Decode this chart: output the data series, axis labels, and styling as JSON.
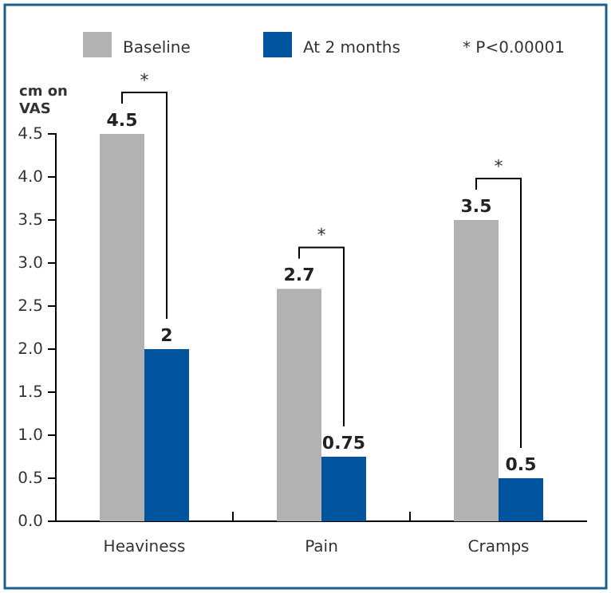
{
  "chart_data": {
    "type": "bar",
    "ylabel": "cm on VAS",
    "categories": [
      "Heaviness",
      "Pain",
      "Cramps"
    ],
    "series": [
      {
        "name": "Baseline",
        "color": "#b2b2b2",
        "values": [
          4.5,
          2.7,
          3.5
        ]
      },
      {
        "name": "At 2 months",
        "color": "#00559e",
        "values": [
          2,
          0.75,
          0.5
        ]
      }
    ],
    "ylim": [
      0,
      4.5
    ],
    "yticks": [
      {
        "value": 0,
        "label": "0.0"
      },
      {
        "value": 0.5,
        "label": "0.5"
      },
      {
        "value": 1,
        "label": "1.0"
      },
      {
        "value": 1.5,
        "label": "1.5"
      },
      {
        "value": 2,
        "label": "2.0"
      },
      {
        "value": 2.5,
        "label": "2.5"
      },
      {
        "value": 3,
        "label": "3.0"
      },
      {
        "value": 3.5,
        "label": "3.5"
      },
      {
        "value": 4,
        "label": "4.0"
      },
      {
        "value": 4.5,
        "label": "4.5"
      }
    ],
    "data_labels": true,
    "legend": "top",
    "grid": false,
    "annotations": [
      "*",
      "*",
      "*",
      "* P<0.00001"
    ]
  }
}
